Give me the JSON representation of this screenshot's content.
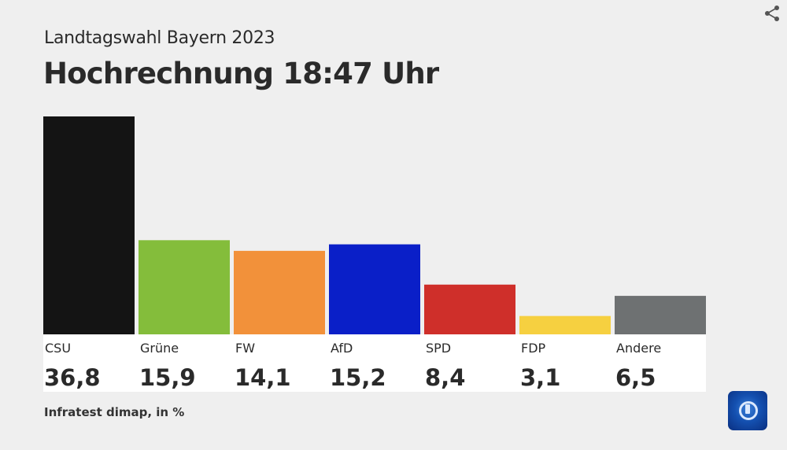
{
  "header": {
    "subtitle": "Landtagswahl Bayern 2023",
    "title": "Hochrechnung 18:47 Uhr",
    "share_icon": "share-icon"
  },
  "chart_data": {
    "type": "bar",
    "title": "Hochrechnung 18:47 Uhr",
    "subtitle": "Landtagswahl Bayern 2023",
    "categories": [
      "CSU",
      "Grüne",
      "FW",
      "AfD",
      "SPD",
      "FDP",
      "Andere"
    ],
    "values": [
      36.8,
      15.9,
      14.1,
      15.2,
      8.4,
      3.1,
      6.5
    ],
    "value_labels": [
      "36,8",
      "15,9",
      "14,1",
      "15,2",
      "8,4",
      "3,1",
      "6,5"
    ],
    "colors": [
      "#141414",
      "#84bd3b",
      "#f2913a",
      "#0a1fc8",
      "#cf2f2a",
      "#f6d040",
      "#6e7172"
    ],
    "ylim": [
      0,
      36.8
    ],
    "grid": false,
    "unit": "%"
  },
  "footer": {
    "source": "Infratest dimap, in %",
    "logo": "tagesschau-logo"
  }
}
